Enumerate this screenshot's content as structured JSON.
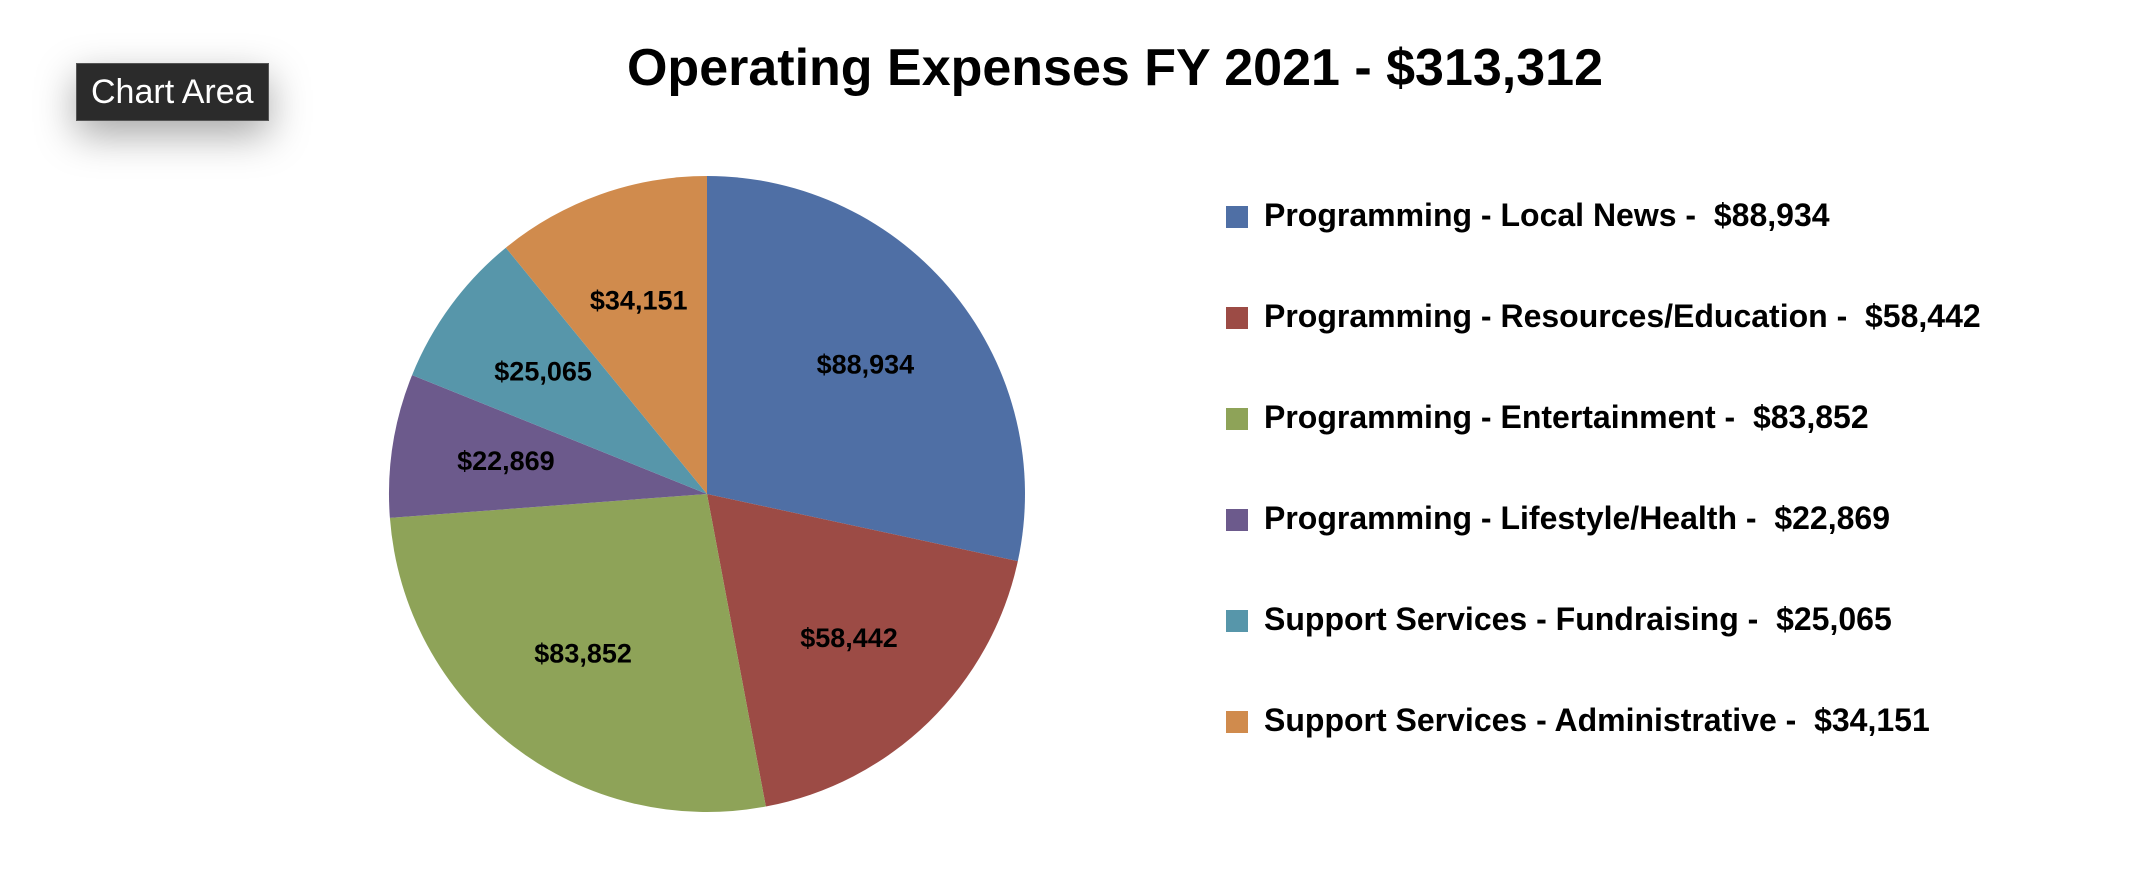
{
  "tooltip": {
    "label": "Chart Area"
  },
  "chart_data": {
    "type": "pie",
    "title": "Operating Expenses FY 2021 - $313,312",
    "legend_position": "right",
    "slices": [
      {
        "name": "Programming - Local News",
        "value": 88934,
        "label": "$88,934",
        "legend": "Programming - Local News -  $88,934",
        "color": "#4f6fa5"
      },
      {
        "name": "Programming - Resources/Education",
        "value": 58442,
        "label": "$58,442",
        "legend": "Programming - Resources/Education -  $58,442",
        "color": "#9c4b45"
      },
      {
        "name": "Programming - Entertainment",
        "value": 83852,
        "label": "$83,852",
        "legend": "Programming - Entertainment -  $83,852",
        "color": "#8ea358"
      },
      {
        "name": "Programming - Lifestyle/Health",
        "value": 22869,
        "label": "$22,869",
        "legend": "Programming - Lifestyle/Health -  $22,869",
        "color": "#6c5a8c"
      },
      {
        "name": "Support Services - Fundraising",
        "value": 25065,
        "label": "$25,065",
        "legend": "Support Services - Fundraising -  $25,065",
        "color": "#5796aa"
      },
      {
        "name": "Support Services - Administrative",
        "value": 34151,
        "label": "$34,151",
        "legend": "Support Services - Administrative -  $34,151",
        "color": "#d08b4d"
      }
    ]
  }
}
